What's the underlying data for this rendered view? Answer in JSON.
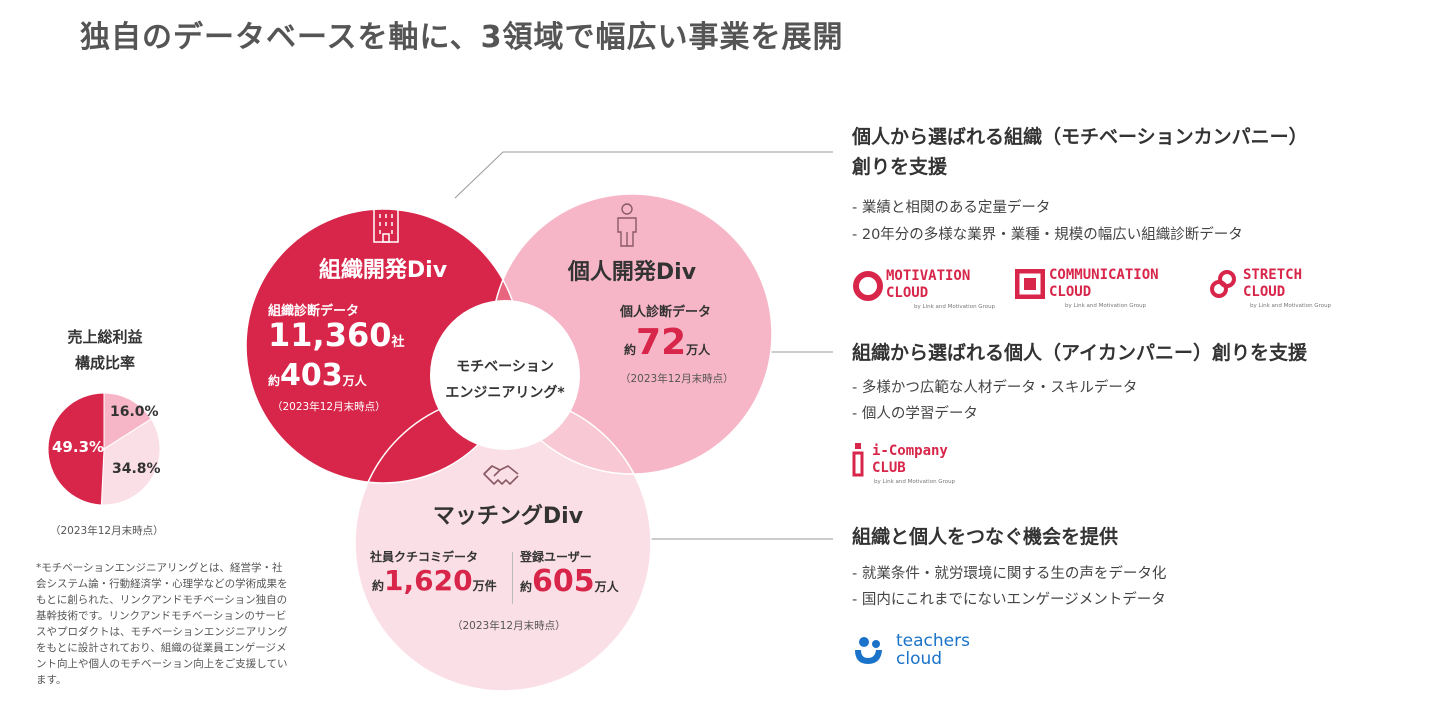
{
  "page_title": "独自のデータベースを軸に、3領域で幅広い事業を展開",
  "venn": {
    "org": {
      "title": "組織開発Div",
      "metric_label": "組織診断データ",
      "value1": "11,360",
      "unit1": "社",
      "prefix2": "約",
      "value2": "403",
      "unit2": "万人",
      "date": "（2023年12月末時点）",
      "icon": "building-icon"
    },
    "ind": {
      "title": "個人開発Div",
      "metric_label": "個人診断データ",
      "prefix": "約",
      "value": "72",
      "unit": "万人",
      "date": "（2023年12月末時点）",
      "icon": "person-icon"
    },
    "match": {
      "title": "マッチングDiv",
      "metric1_label": "社員クチコミデータ",
      "prefix1": "約",
      "value1": "1,620",
      "unit1": "万件",
      "metric2_label": "登録ユーザー",
      "prefix2": "約",
      "value2": "605",
      "unit2": "万人",
      "date": "（2023年12月末時点）",
      "icon": "handshake-icon"
    },
    "center": {
      "line1": "モチベーション",
      "line2": "エンジニアリング*"
    }
  },
  "pie": {
    "title_line1": "売上総利益",
    "title_line2": "構成比率",
    "date": "（2023年12月末時点）",
    "chart_data": {
      "type": "pie",
      "slices": [
        {
          "label": "16.0%",
          "value": 16.0,
          "color": "#f6b6c8"
        },
        {
          "label": "34.8%",
          "value": 34.8,
          "color": "#fbdfe6"
        },
        {
          "label": "49.3%",
          "value": 49.3,
          "color": "#d8264a"
        }
      ]
    }
  },
  "footnote": [
    "*モチベーションエンジニアリングとは、経営学・社",
    "会システム論・行動経済学・心理学などの学術成果を",
    "もとに創られた、リンクアンドモチベーション独自の",
    "基幹技術です。リンクアンドモチベーションのサービ",
    "スやプロダクトは、モチベーションエンジニアリング",
    "をもとに設計されており、組織の従業員エンゲージメ",
    "ント向上や個人のモチベーション向上をご支援してい",
    "ます。"
  ],
  "sections": {
    "s1": {
      "heading_line1": "個人から選ばれる組織（モチベーションカンパニー）",
      "heading_line2": "創りを支援",
      "bullets": [
        "- 業績と相関のある定量データ",
        "- 20年分の多様な業界・業種・規模の幅広い組織診断データ"
      ],
      "logos": [
        {
          "line1": "MOTIVATION",
          "line2": "CLOUD",
          "sub": "by Link and Motivation Group"
        },
        {
          "line1": "COMMUNICATION",
          "line2": "CLOUD",
          "sub": "by Link and Motivation Group"
        },
        {
          "line1": "STRETCH",
          "line2": "CLOUD",
          "sub": "by Link and Motivation Group"
        }
      ]
    },
    "s2": {
      "heading": "組織から選ばれる個人（アイカンパニー）創りを支援",
      "bullets": [
        "- 多様かつ広範な人材データ・スキルデータ",
        "- 個人の学習データ"
      ],
      "logo": {
        "line1": "i-Company",
        "line2": "CLUB",
        "sub": "by Link and Motivation Group"
      }
    },
    "s3": {
      "heading": "組織と個人をつなぐ機会を提供",
      "bullets": [
        "- 就業条件・就労環境に関する生の声をデータ化",
        "- 国内にこれまでにないエンゲージメントデータ"
      ],
      "logo": {
        "line1": "teachers",
        "line2": "cloud"
      }
    }
  },
  "colors": {
    "crimson": "#d8264a",
    "pink": "#f6b6c8",
    "light_pink": "#fbdfe6",
    "blue": "#1a73c8"
  }
}
